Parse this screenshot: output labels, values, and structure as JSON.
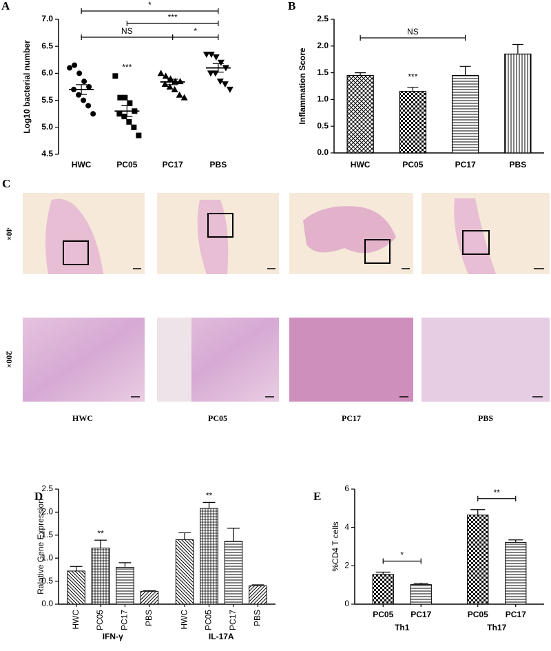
{
  "chart_data": [
    {
      "panel": "A",
      "type": "scatter",
      "ylabel": "Log10 bacterial number",
      "categories": [
        "HWC",
        "PC05",
        "PC17",
        "PBS"
      ],
      "markers": [
        "circle",
        "square",
        "triangle",
        "triangle-down"
      ],
      "color": "#000000",
      "values": [
        [
          6.1,
          6.15,
          6.0,
          5.85,
          5.75,
          5.7,
          5.6,
          5.5,
          5.4,
          5.25
        ],
        [
          5.95,
          5.55,
          5.55,
          5.45,
          5.3,
          5.25,
          5.2,
          5.1,
          5.0,
          4.85
        ],
        [
          6.0,
          5.95,
          5.9,
          5.85,
          5.85,
          5.8,
          5.75,
          5.7,
          5.6,
          5.55
        ],
        [
          6.35,
          6.35,
          6.3,
          6.2,
          6.1,
          6.0,
          6.0,
          5.85,
          5.8,
          5.7
        ]
      ],
      "means": [
        5.7,
        5.3,
        5.84,
        6.1
      ],
      "errors": [
        0.09,
        0.1,
        0.05,
        0.08
      ],
      "ylim": [
        4.5,
        7.0
      ],
      "yticks": [
        4.5,
        {
          "value": 5.0,
          "label": "5.0"
        },
        5.5,
        {
          "value": 6.0,
          "label": "6.0"
        },
        6.5,
        {
          "value": 7.0,
          "label": "7.0"
        }
      ],
      "annotations": [
        {
          "between": [
            "HWC",
            "PBS"
          ],
          "label": "*"
        },
        {
          "between": [
            "PC05",
            "PBS"
          ],
          "label": "***"
        },
        {
          "between": [
            "HWC",
            "PC17"
          ],
          "label": "NS"
        },
        {
          "between": [
            "PC17",
            "PBS"
          ],
          "label": "*"
        },
        {
          "at": "PC05",
          "label": "***"
        }
      ]
    },
    {
      "panel": "B",
      "type": "bar",
      "ylabel": "Inflammation Score",
      "categories": [
        "HWC",
        "PC05",
        "PC17",
        "PBS"
      ],
      "values": [
        1.45,
        1.15,
        1.45,
        1.85
      ],
      "errors": [
        0.05,
        0.08,
        0.17,
        0.18
      ],
      "patterns": [
        "crosshatch",
        "checker",
        "hlines",
        "vlines"
      ],
      "ylim": [
        0,
        2.5
      ],
      "yticks": [
        {
          "value": 0,
          "label": "0.0"
        },
        0.5,
        {
          "value": 1,
          "label": "1.0"
        },
        1.5,
        {
          "value": 2,
          "label": "2.0"
        },
        2.5
      ],
      "annotations": [
        {
          "between": [
            "HWC",
            "PC17"
          ],
          "label": "NS"
        },
        {
          "at": "PC05",
          "label": "***"
        }
      ]
    },
    {
      "panel": "D",
      "type": "grouped-bar",
      "ylabel": "Ralative Gene Expression",
      "rotate_labels": true,
      "categories": [
        "IFN-γ",
        "IL-17A"
      ],
      "series": [
        {
          "name": "HWC",
          "pattern": "antidiag",
          "values": [
            0.72,
            1.4
          ],
          "errors": [
            0.1,
            0.15
          ]
        },
        {
          "name": "PC05",
          "pattern": "grid",
          "values": [
            1.22,
            2.08
          ],
          "errors": [
            0.17,
            0.13
          ]
        },
        {
          "name": "PC17",
          "pattern": "hlines",
          "values": [
            0.8,
            1.37
          ],
          "errors": [
            0.1,
            0.28
          ]
        },
        {
          "name": "PBS",
          "pattern": "diag",
          "values": [
            0.28,
            0.4
          ],
          "errors": [
            0.01,
            0.02
          ]
        }
      ],
      "ylim": [
        0,
        2.5
      ],
      "yticks": [
        {
          "value": 0,
          "label": "0.0"
        },
        0.5,
        {
          "value": 1,
          "label": "1.0"
        },
        1.5,
        {
          "value": 2,
          "label": "2.0"
        },
        2.5
      ],
      "annotations": [
        {
          "category": "IFN-γ",
          "series": "PC05",
          "label": "**"
        },
        {
          "category": "IL-17A",
          "series": "PC05",
          "label": "**"
        }
      ]
    },
    {
      "panel": "E",
      "type": "grouped-bar",
      "ylabel": "%CD4 T cells",
      "rotate_labels": false,
      "categories": [
        "Th1",
        "Th17"
      ],
      "series": [
        {
          "name": "PC05",
          "pattern": "checker",
          "values": [
            1.55,
            4.65
          ],
          "errors": [
            0.12,
            0.28
          ]
        },
        {
          "name": "PC17",
          "pattern": "hlines",
          "values": [
            1.02,
            3.22
          ],
          "errors": [
            0.07,
            0.13
          ]
        }
      ],
      "ylim": [
        0,
        6
      ],
      "yticks": [
        0,
        2,
        4,
        6
      ],
      "annotations": [
        {
          "category": "Th1",
          "between": [
            "PC05",
            "PC17"
          ],
          "label": "*"
        },
        {
          "category": "Th17",
          "between": [
            "PC05",
            "PC17"
          ],
          "label": "**"
        }
      ]
    }
  ],
  "histology": {
    "panel": "C",
    "rows": [
      "40×",
      "200×"
    ],
    "columns": [
      "HWC",
      "PC05",
      "PC17",
      "PBS"
    ]
  }
}
